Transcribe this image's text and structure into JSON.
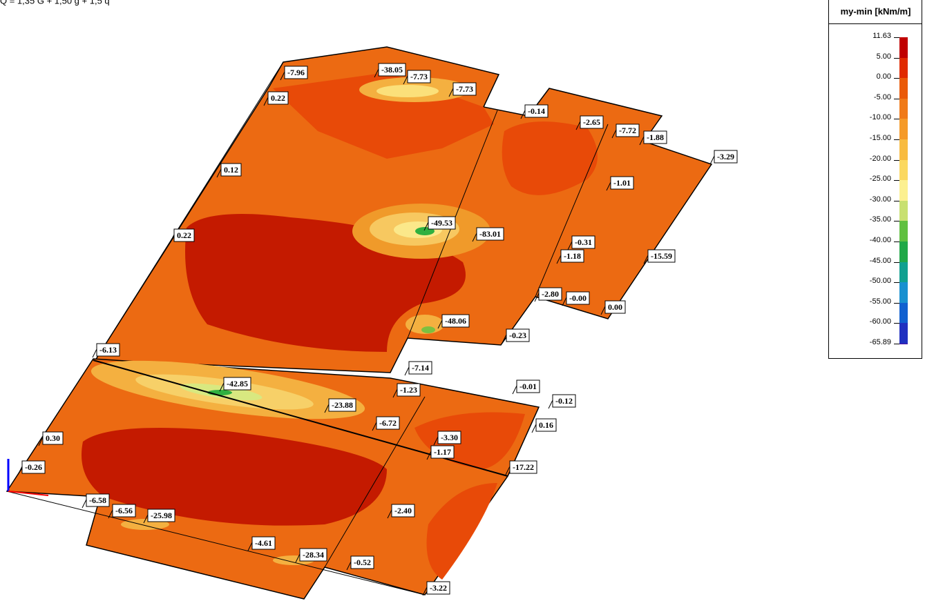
{
  "load_combination": "Q = 1,35 G + 1,50 g + 1,5 q",
  "legend": {
    "title": "my-min [kNm/m]",
    "entries": [
      {
        "label": "11.63",
        "color": "#c00000"
      },
      {
        "label": "5.00",
        "color": "#e02a00"
      },
      {
        "label": "0.00",
        "color": "#ea5a08"
      },
      {
        "label": "-5.00",
        "color": "#f07a18"
      },
      {
        "label": "-10.00",
        "color": "#f59a28"
      },
      {
        "label": "-15.00",
        "color": "#f8bb40"
      },
      {
        "label": "-20.00",
        "color": "#fbd860"
      },
      {
        "label": "-25.00",
        "color": "#fcf090"
      },
      {
        "label": "-30.00",
        "color": "#c8e070"
      },
      {
        "label": "-35.00",
        "color": "#60c040"
      },
      {
        "label": "-40.00",
        "color": "#20a848"
      },
      {
        "label": "-45.00",
        "color": "#10a090"
      },
      {
        "label": "-50.00",
        "color": "#1890d0"
      },
      {
        "label": "-55.00",
        "color": "#1060d0"
      },
      {
        "label": "-60.00",
        "color": "#2030c0"
      },
      {
        "label": "-65.89",
        "color": "#5010a0"
      }
    ]
  },
  "labels": [
    "-7.96",
    "-38.05",
    "-7.73",
    "-7.73",
    "0.22",
    "-0.14",
    "-2.65",
    "-7.72",
    "-1.88",
    "-3.29",
    "0.12",
    "-1.01",
    "-49.53",
    "-83.01",
    "0.22",
    "-0.31",
    "-1.18",
    "-15.59",
    "-2.80",
    "-0.00",
    "0.00",
    "-48.06",
    "-0.23",
    "-6.13",
    "-7.14",
    "-42.85",
    "-1.23",
    "-0.01",
    "-0.12",
    "-23.88",
    "-6.72",
    "0.16",
    "-3.30",
    "0.30",
    "-1.17",
    "-0.26",
    "-17.22",
    "-6.58",
    "-6.56",
    "-25.98",
    "-2.40",
    "-4.61",
    "-28.34",
    "-0.52",
    "-3.22"
  ]
}
